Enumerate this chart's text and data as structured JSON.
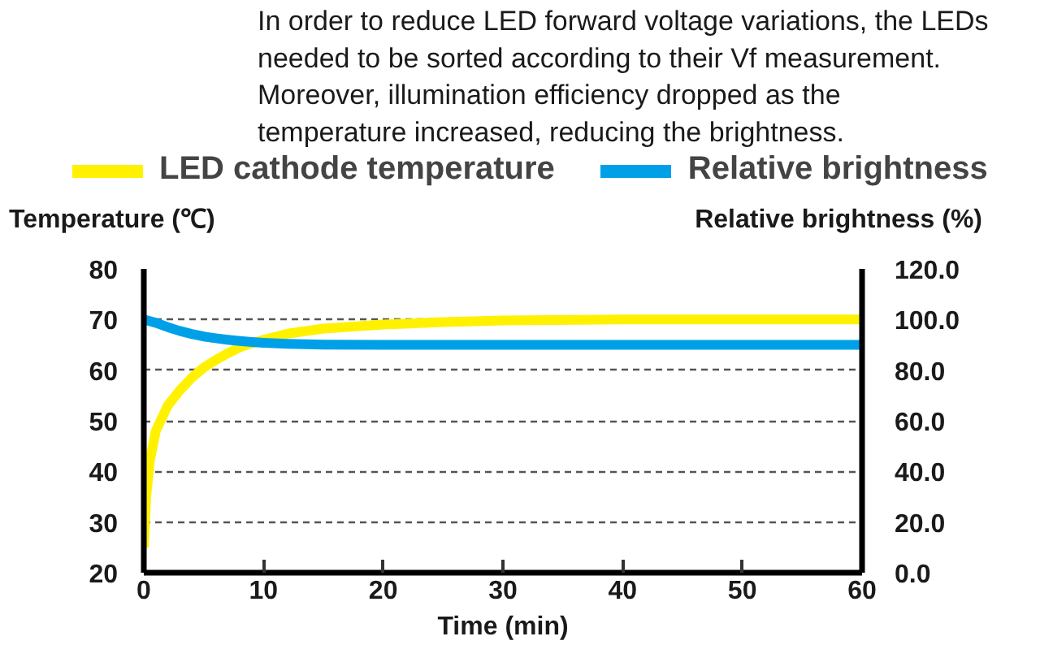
{
  "chart_data": {
    "type": "line",
    "annotations": [
      "In order to reduce LED forward voltage variations, the LEDs needed to be sorted according to their Vf measurement. Moreover, illumination efficiency dropped as the temperature increased, reducing the brightness."
    ],
    "xlabel": "Time (min)",
    "ylabel": "Temperature (℃)",
    "y2label": "Relative brightness (%)",
    "xlim": [
      0,
      60
    ],
    "xticks": [
      0,
      10,
      20,
      30,
      40,
      50,
      60
    ],
    "ylim": [
      20,
      80
    ],
    "yticks": [
      20,
      30,
      40,
      50,
      60,
      70,
      80
    ],
    "y2lim": [
      0,
      120
    ],
    "y2ticks": [
      {
        "value": 0,
        "label": "0.0"
      },
      {
        "value": 20,
        "label": "20.0"
      },
      {
        "value": 40,
        "label": "40.0"
      },
      {
        "value": 60,
        "label": "60.0"
      },
      {
        "value": 80,
        "label": "80.0"
      },
      {
        "value": 100,
        "label": "100.0"
      },
      {
        "value": 120,
        "label": "120.0"
      }
    ],
    "grid": "y",
    "legend": "top",
    "line_style": "solid",
    "series": [
      {
        "name": "LED cathode temperature",
        "color": "#fff100",
        "x": [
          0,
          0.2,
          0.5,
          1,
          2,
          3,
          4,
          5,
          6,
          7,
          8,
          9,
          10,
          12,
          15,
          20,
          25,
          30,
          40,
          50,
          60
        ],
        "values": [
          25,
          35,
          42,
          48,
          53,
          56,
          58.5,
          60.5,
          62,
          63.3,
          64.5,
          65.3,
          66,
          67.2,
          68.2,
          69,
          69.5,
          69.8,
          70,
          70,
          70
        ]
      },
      {
        "name": "Relative brightness",
        "color": "#00a0e9",
        "axis": "y2",
        "x": [
          0,
          1,
          2,
          3,
          4,
          5,
          6,
          7,
          8,
          9,
          10,
          12,
          15,
          20,
          30,
          40,
          50,
          60
        ],
        "values": [
          100,
          98.7,
          97,
          95.5,
          94.3,
          93.3,
          92.6,
          92,
          91.5,
          91.1,
          90.8,
          90.4,
          90.1,
          90,
          90,
          90,
          90,
          90
        ]
      }
    ]
  }
}
